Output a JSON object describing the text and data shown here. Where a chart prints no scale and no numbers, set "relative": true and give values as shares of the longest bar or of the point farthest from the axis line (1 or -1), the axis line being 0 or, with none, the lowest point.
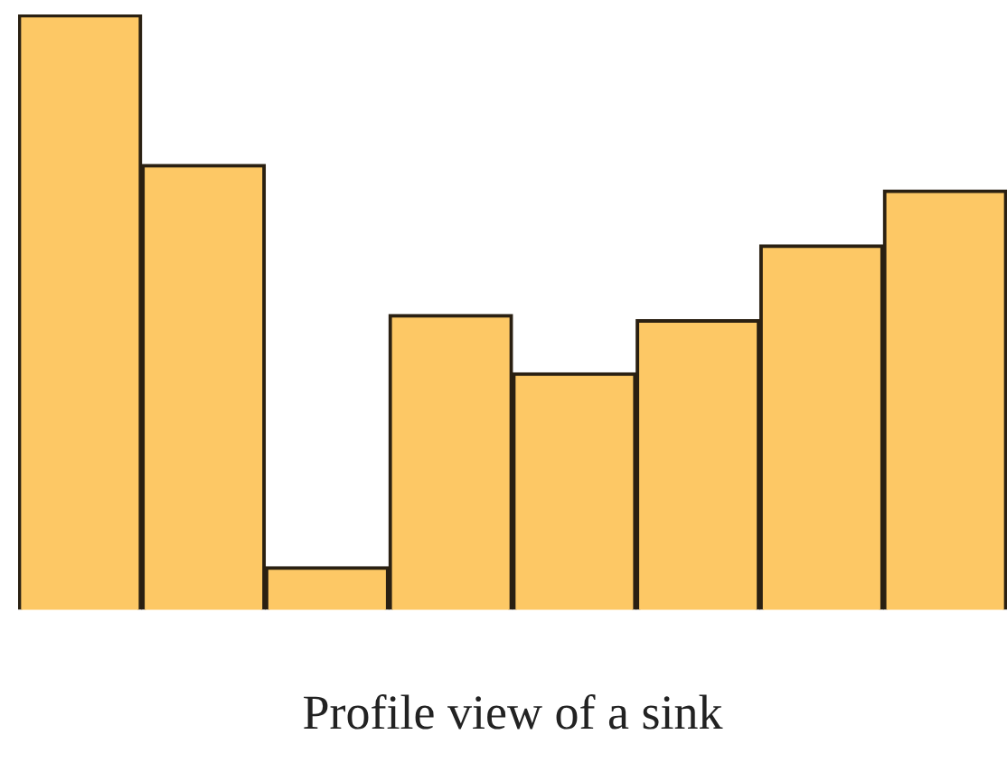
{
  "chart_data": {
    "type": "bar",
    "xlabel": "Profile view of a sink",
    "relative": true,
    "categories": [
      null,
      null,
      null,
      null,
      null,
      null,
      null,
      null
    ],
    "values": [
      1,
      0.748,
      0.072,
      0.496,
      0.398,
      0.487,
      0.613,
      0.705
    ],
    "color": "#fdc865",
    "grid": false,
    "legend": false
  }
}
